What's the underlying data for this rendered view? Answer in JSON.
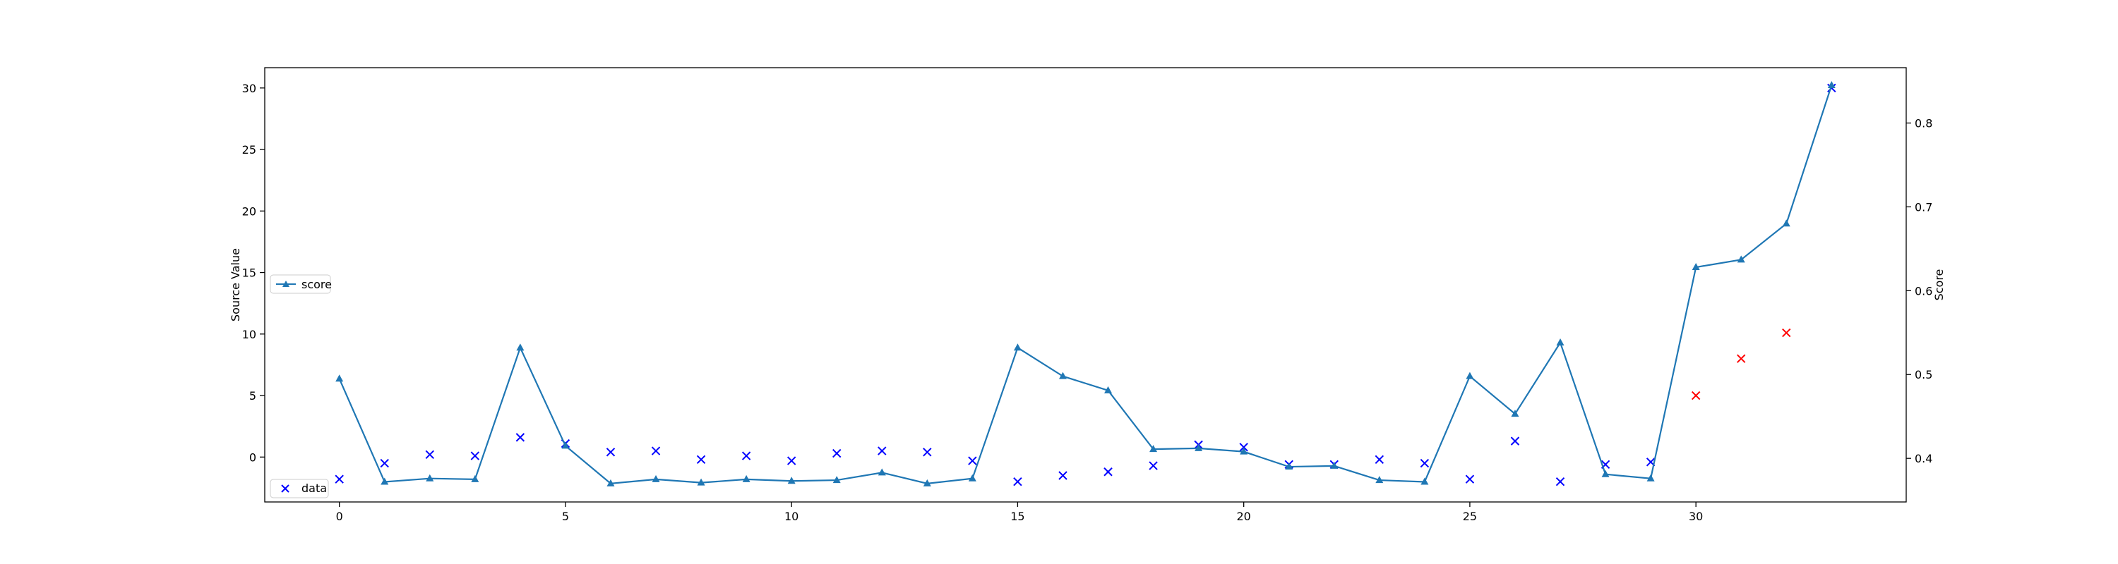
{
  "chart_data": {
    "type": "line",
    "title": "",
    "xlabel": "",
    "ylabel": "Source Value",
    "y2label": "Score",
    "xlim": [
      -1.65,
      34.65
    ],
    "ylim": [
      -3.65,
      31.65
    ],
    "y2lim": [
      0.348,
      0.866
    ],
    "xticks": [
      0,
      5,
      10,
      15,
      20,
      25,
      30
    ],
    "yticks": [
      0,
      5,
      10,
      15,
      20,
      25,
      30
    ],
    "y2ticks": [
      0.4,
      0.5,
      0.6,
      0.7,
      0.8
    ],
    "y2ticklabels": [
      "0.4",
      "0.5",
      "0.6",
      "0.7",
      "0.8"
    ],
    "grid": false,
    "series": [
      {
        "name": "data",
        "kind": "scatter",
        "marker": "x",
        "axis": "left",
        "x": [
          0,
          1,
          2,
          3,
          4,
          5,
          6,
          7,
          8,
          9,
          10,
          11,
          12,
          13,
          14,
          15,
          16,
          17,
          18,
          19,
          20,
          21,
          22,
          23,
          24,
          25,
          26,
          27,
          28,
          29,
          30,
          31,
          32,
          33
        ],
        "y": [
          -1.8,
          -0.5,
          0.2,
          0.1,
          1.6,
          1.1,
          0.4,
          0.5,
          -0.2,
          0.1,
          -0.3,
          0.3,
          0.5,
          0.4,
          -0.3,
          -2.0,
          -1.5,
          -1.2,
          -0.7,
          1.0,
          0.8,
          -0.6,
          -0.6,
          -0.2,
          -0.5,
          -1.8,
          1.3,
          -2.0,
          -0.6,
          -0.4,
          5.0,
          8.0,
          10.1,
          30.0
        ],
        "colors": [
          "#0000ff",
          "#0000ff",
          "#0000ff",
          "#0000ff",
          "#0000ff",
          "#0000ff",
          "#0000ff",
          "#0000ff",
          "#0000ff",
          "#0000ff",
          "#0000ff",
          "#0000ff",
          "#0000ff",
          "#0000ff",
          "#0000ff",
          "#0000ff",
          "#0000ff",
          "#0000ff",
          "#0000ff",
          "#0000ff",
          "#0000ff",
          "#0000ff",
          "#0000ff",
          "#0000ff",
          "#0000ff",
          "#0000ff",
          "#0000ff",
          "#0000ff",
          "#0000ff",
          "#0000ff",
          "#ff0000",
          "#ff0000",
          "#ff0000",
          "#0000ff"
        ]
      },
      {
        "name": "score",
        "kind": "line",
        "marker": "triangle",
        "axis": "right",
        "color": "#1f77b4",
        "x": [
          0,
          1,
          2,
          3,
          4,
          5,
          6,
          7,
          8,
          9,
          10,
          11,
          12,
          13,
          14,
          15,
          16,
          17,
          18,
          19,
          20,
          21,
          22,
          23,
          24,
          25,
          26,
          27,
          28,
          29,
          30,
          31,
          32,
          33
        ],
        "y": [
          0.495,
          0.372,
          0.376,
          0.375,
          0.532,
          0.415,
          0.37,
          0.375,
          0.371,
          0.375,
          0.373,
          0.374,
          0.383,
          0.37,
          0.376,
          0.532,
          0.498,
          0.481,
          0.411,
          0.412,
          0.408,
          0.39,
          0.391,
          0.374,
          0.372,
          0.498,
          0.453,
          0.538,
          0.381,
          0.376,
          0.628,
          0.637,
          0.68,
          0.845
        ]
      }
    ],
    "legends": [
      {
        "series": "data",
        "placement": "lower-left"
      },
      {
        "series": "score",
        "placement": "center-left"
      }
    ]
  }
}
